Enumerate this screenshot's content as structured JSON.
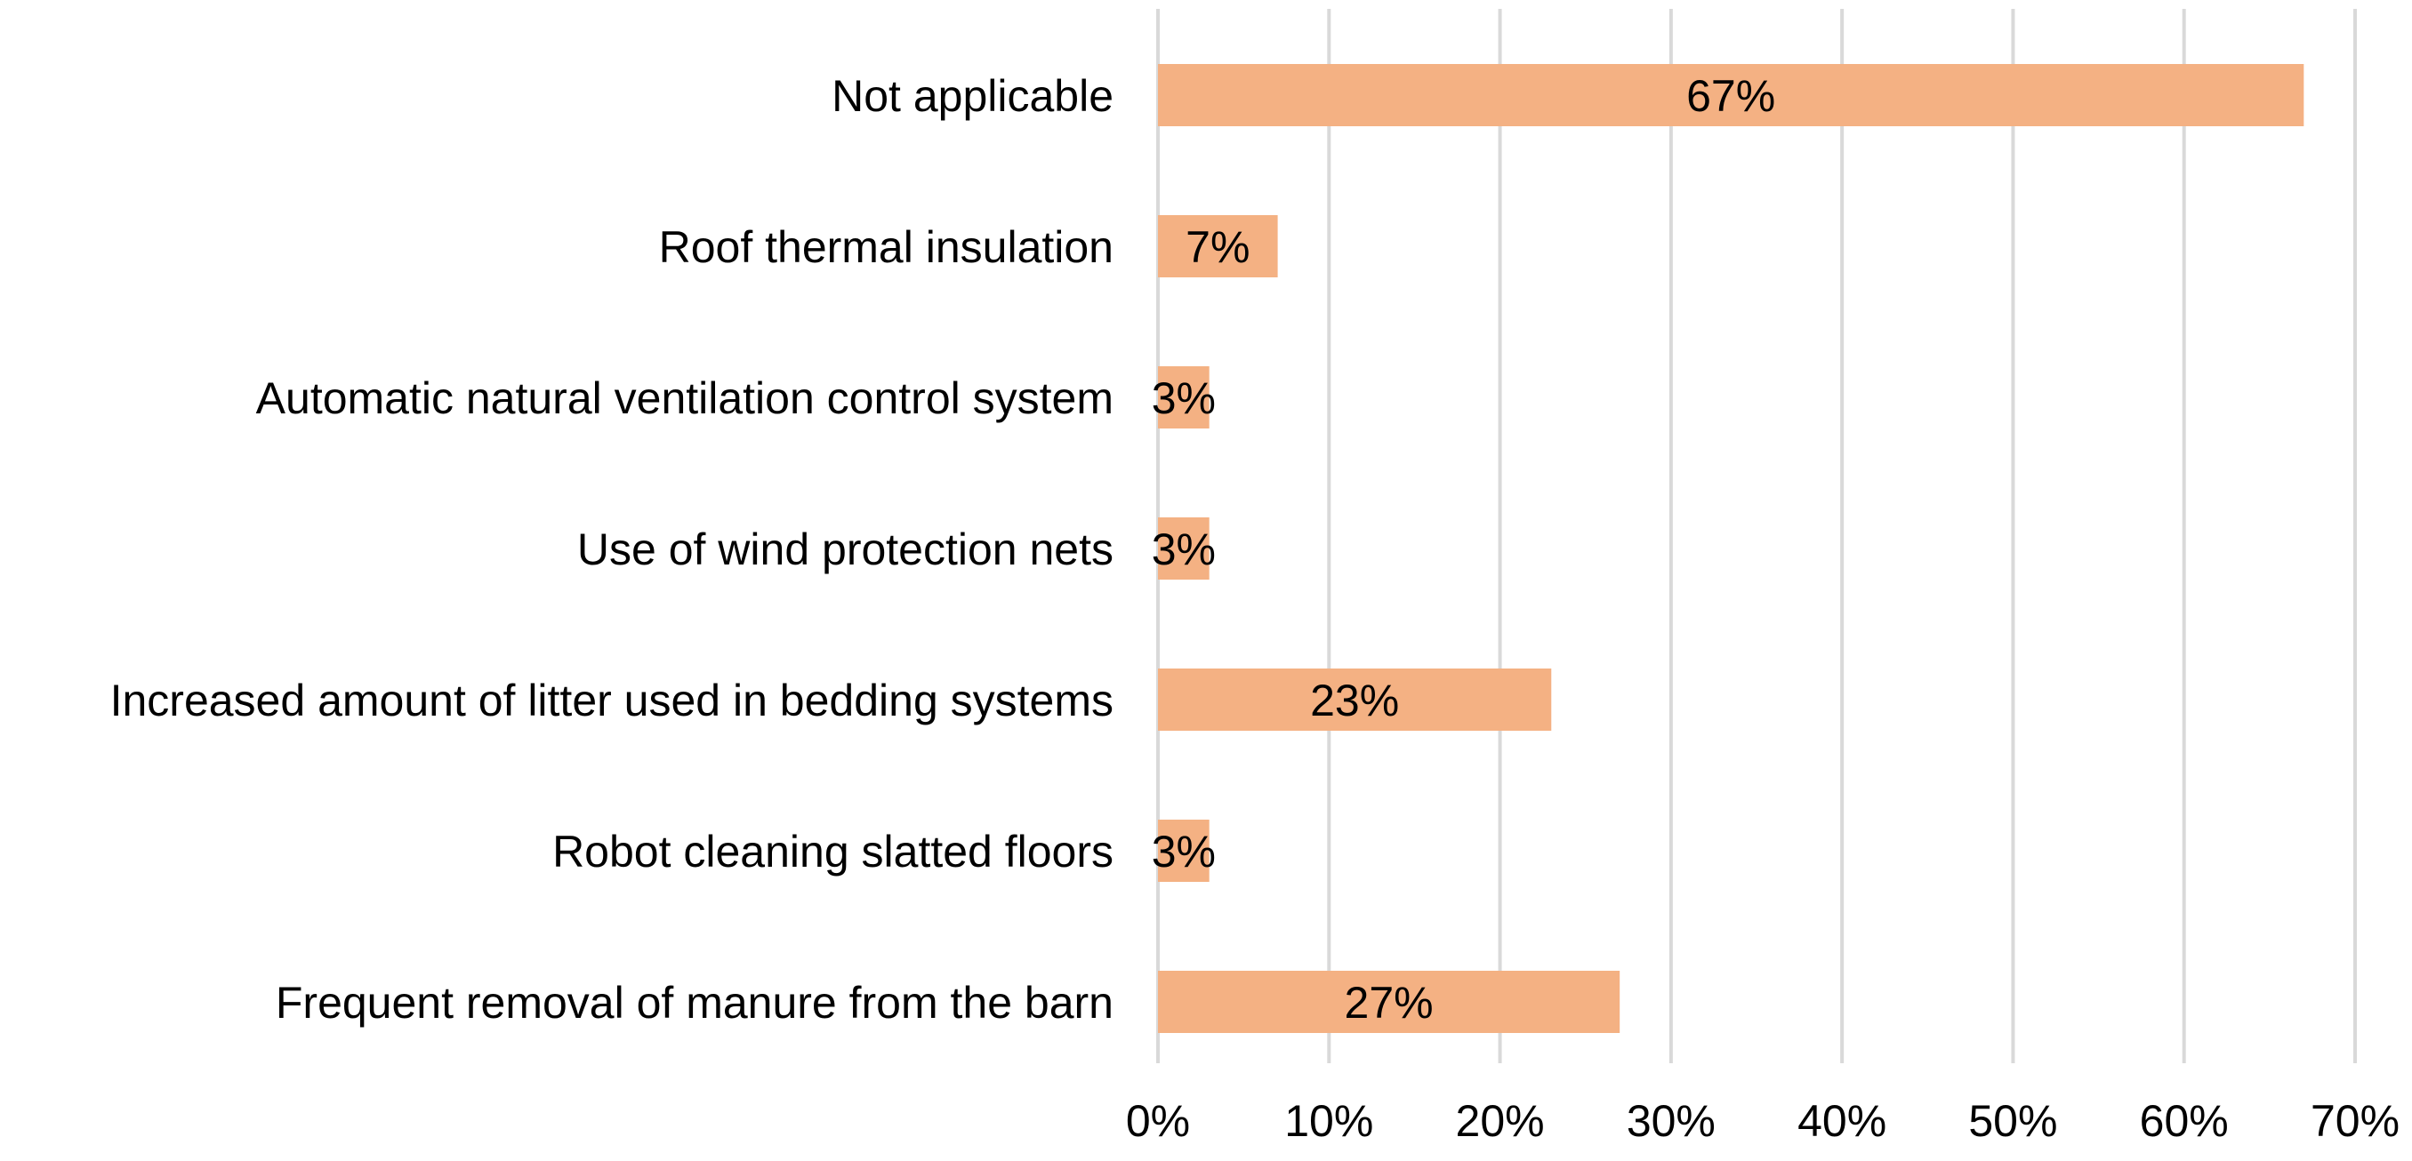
{
  "chart_data": {
    "type": "bar",
    "orientation": "horizontal",
    "categories": [
      "Not applicable",
      "Roof thermal insulation",
      "Automatic natural ventilation control system",
      "Use of wind protection nets",
      "Increased amount of litter used in bedding systems",
      "Robot cleaning slatted floors",
      "Frequent removal of manure from the barn"
    ],
    "values": [
      67,
      7,
      3,
      3,
      23,
      3,
      27
    ],
    "data_labels": [
      "67%",
      "7%",
      "3%",
      "3%",
      "23%",
      "3%",
      "27%"
    ],
    "xlim": [
      0,
      70
    ],
    "x_ticks": [
      0,
      10,
      20,
      30,
      40,
      50,
      60,
      70
    ],
    "x_tick_labels": [
      "0%",
      "10%",
      "20%",
      "30%",
      "40%",
      "50%",
      "60%",
      "70%"
    ],
    "grid": true,
    "legend": "none",
    "colors": {
      "bar": "#f4b183",
      "grid": "#d9d9d9"
    }
  }
}
